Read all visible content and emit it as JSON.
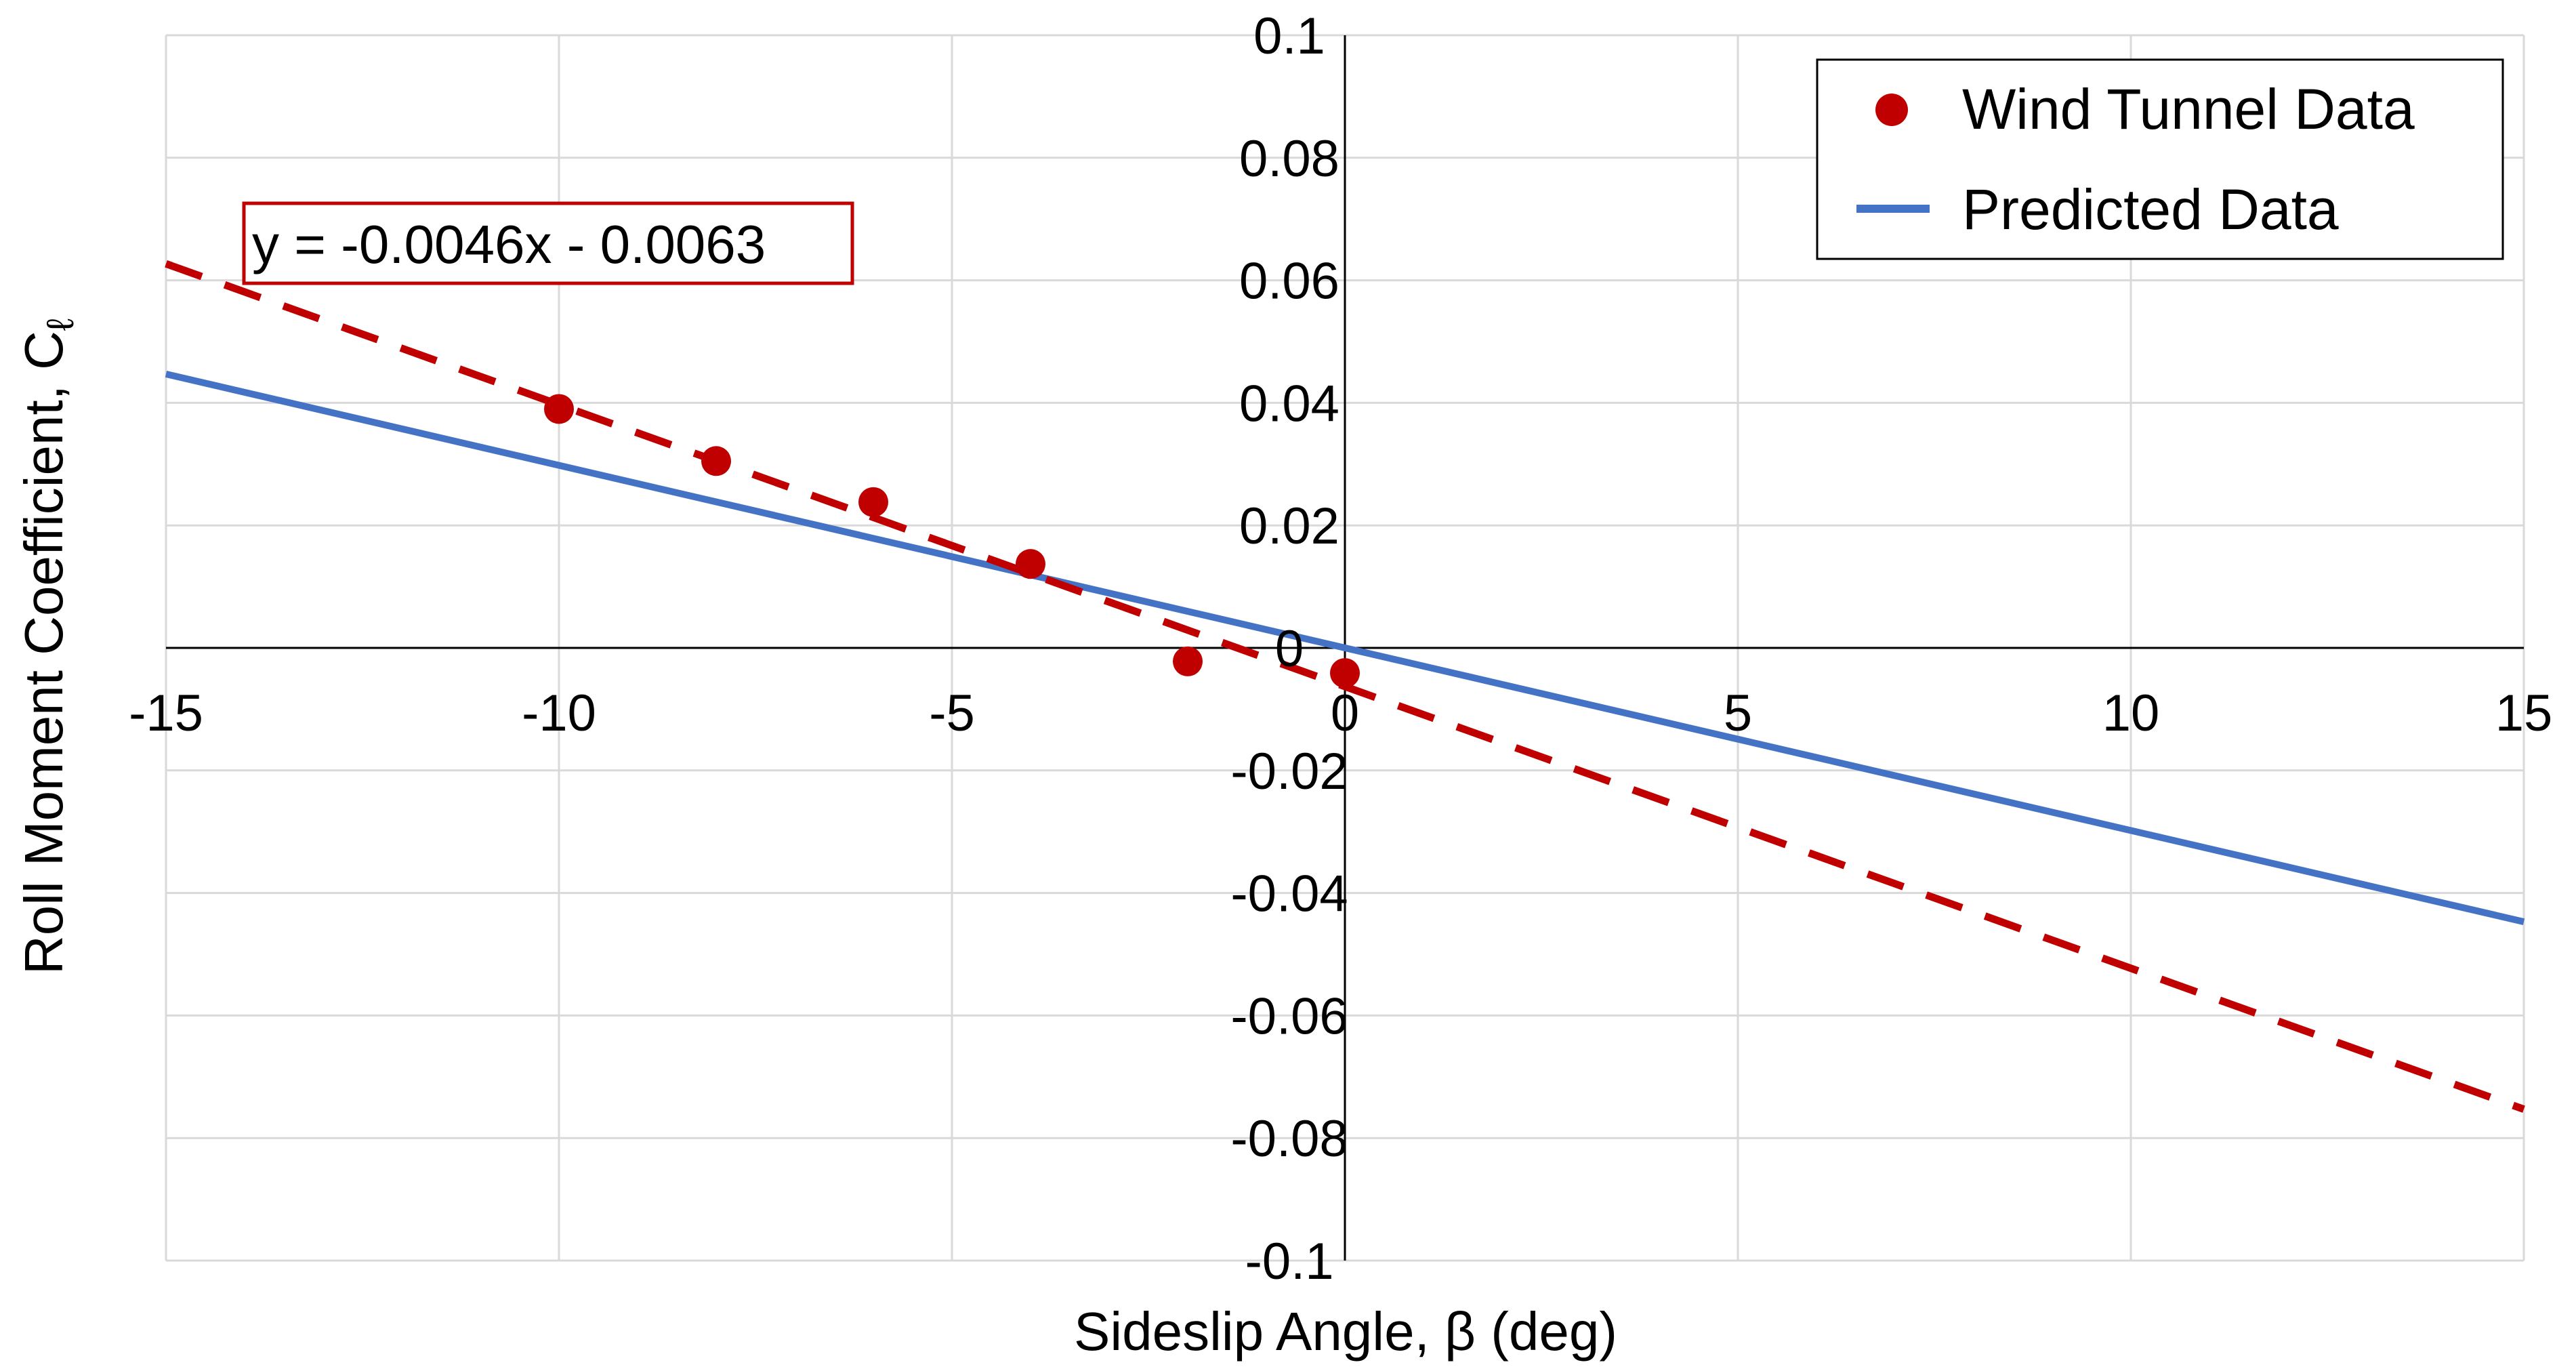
{
  "chart_data": {
    "type": "scatter",
    "xlabel": "Sideslip Angle, β (deg)",
    "ylabel_main": "Roll Moment Coefficient, C",
    "ylabel_subscript": "ℓ",
    "xlim": [
      -15,
      15
    ],
    "ylim": [
      -0.1,
      0.1
    ],
    "x_ticks": [
      -15,
      -10,
      -5,
      0,
      5,
      10,
      15
    ],
    "x_tick_labels": [
      "-15",
      "-10",
      "-5",
      "0",
      "5",
      "10",
      "15"
    ],
    "y_ticks": [
      0.1,
      0.08,
      0.06,
      0.04,
      0.02,
      0,
      -0.02,
      -0.04,
      -0.06,
      -0.08,
      -0.1
    ],
    "y_tick_labels": [
      "0.1",
      "0.08",
      "0.06",
      "0.04",
      "0.02",
      "0",
      "-0.02",
      "-0.04",
      "-0.06",
      "-0.08",
      "-0.1"
    ],
    "grid": true,
    "legend_position": "top-right",
    "series": [
      {
        "name": "Wind Tunnel Data",
        "kind": "scatter",
        "color": "#C00000",
        "x": [
          -10,
          -8,
          -6,
          -4,
          -2,
          0
        ],
        "y": [
          0.039,
          0.0305,
          0.0238,
          0.0137,
          -0.0022,
          -0.0041
        ]
      },
      {
        "name": "Predicted Data",
        "kind": "line",
        "color": "#4472C4",
        "x": [
          -15,
          15
        ],
        "y": [
          0.0447,
          -0.0447
        ]
      }
    ],
    "trendline": {
      "kind": "linear",
      "style": "dashed",
      "color": "#C00000",
      "slope": -0.0046,
      "intercept": -0.0063,
      "x_range": [
        -15,
        15
      ],
      "equation_label": "y = -0.0046x - 0.0063"
    }
  }
}
